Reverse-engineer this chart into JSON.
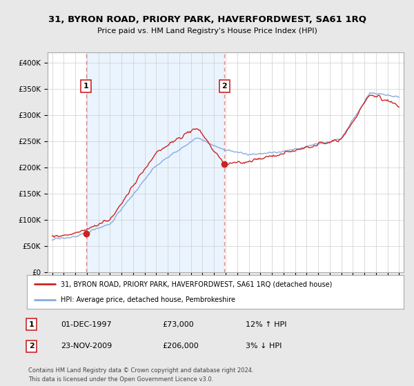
{
  "title": "31, BYRON ROAD, PRIORY PARK, HAVERFORDWEST, SA61 1RQ",
  "subtitle": "Price paid vs. HM Land Registry's House Price Index (HPI)",
  "legend_label_red": "31, BYRON ROAD, PRIORY PARK, HAVERFORDWEST, SA61 1RQ (detached house)",
  "legend_label_blue": "HPI: Average price, detached house, Pembrokeshire",
  "footnote": "Contains HM Land Registry data © Crown copyright and database right 2024.\nThis data is licensed under the Open Government Licence v3.0.",
  "sale1_date": "01-DEC-1997",
  "sale1_price": "£73,000",
  "sale1_hpi": "12% ↑ HPI",
  "sale1_year": 1997.92,
  "sale1_value": 73000,
  "sale2_date": "23-NOV-2009",
  "sale2_price": "£206,000",
  "sale2_hpi": "3% ↓ HPI",
  "sale2_year": 2009.9,
  "sale2_value": 206000,
  "ylim": [
    0,
    420000
  ],
  "yticks": [
    0,
    50000,
    100000,
    150000,
    200000,
    250000,
    300000,
    350000,
    400000
  ],
  "ytick_labels": [
    "£0",
    "£50K",
    "£100K",
    "£150K",
    "£200K",
    "£250K",
    "£300K",
    "£350K",
    "£400K"
  ],
  "xmin": 1994.6,
  "xmax": 2025.4,
  "background_color": "#e8e8e8",
  "plot_bg_color": "#ffffff",
  "red_color": "#cc2222",
  "blue_color": "#88aadd",
  "dashed_color": "#dd8888",
  "shade_color": "#ddeeff",
  "annotation_box_color": "#cc2222"
}
